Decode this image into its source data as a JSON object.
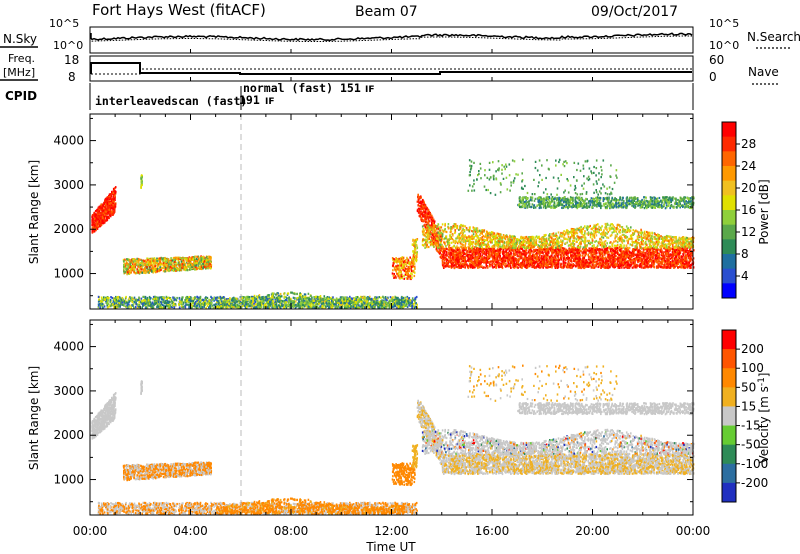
{
  "header": {
    "station": "Fort Hays West (fitACF)",
    "beam": "Beam 07",
    "date": "09/Oct/2017"
  },
  "strip_panels": {
    "nsky_label": "N.Sky",
    "nsky_ticks": [
      "10^5",
      "10^0"
    ],
    "nsearch_label": "N.Search",
    "nsearch_ticks": [
      "10^5",
      "10^0"
    ],
    "freq_label_1": "Freq.",
    "freq_label_2": "[MHz]",
    "freq_ticks": [
      "18",
      "8"
    ],
    "nave_label": "Nave",
    "nave_ticks": [
      "60",
      "0"
    ],
    "cpid_label": "CPID",
    "mode_1": "interleavedscan (fast)",
    "mode_1_num": "191",
    "mode_1_if": "IF",
    "mode_2": "normal (fast)",
    "mode_2_num": "151",
    "mode_2_if": "IF"
  },
  "chart_data": [
    {
      "type": "heatmap",
      "title": "",
      "ylabel": "Slant Range [km]",
      "ylim": [
        200,
        4600
      ],
      "y_ticks": [
        "4000",
        "3000",
        "2000",
        "1000"
      ],
      "colorbar_label": "Power [dB]",
      "colorbar_ticks": [
        "28",
        "24",
        "20",
        "16",
        "12",
        "8",
        "4"
      ],
      "colorbar_colors": [
        "#0000ff",
        "#2a4fd0",
        "#1f6fa0",
        "#2e8b57",
        "#5aa84a",
        "#8fcf3a",
        "#e0e000",
        "#f0c020",
        "#ff9900",
        "#ff6600",
        "#ff2a00",
        "#ff0000"
      ]
    },
    {
      "type": "heatmap",
      "title": "",
      "ylabel": "Slant Range [km]",
      "ylim": [
        200,
        4600
      ],
      "y_ticks": [
        "4000",
        "3000",
        "2000",
        "1000"
      ],
      "colorbar_label": "Velocity [m s^-1]",
      "colorbar_ticks": [
        "200",
        "100",
        "50",
        "15",
        "-15",
        "-50",
        "-100",
        "-200"
      ],
      "colorbar_colors": [
        "#2030c0",
        "#2c6ea0",
        "#2e8b57",
        "#66cc33",
        "#c8c8c8",
        "#f0b020",
        "#ff8800",
        "#ff5500",
        "#ff0000"
      ]
    }
  ],
  "x_axis": {
    "label": "Time UT",
    "ticks": [
      "00:00",
      "04:00",
      "08:00",
      "12:00",
      "16:00",
      "20:00",
      "00:00"
    ]
  }
}
